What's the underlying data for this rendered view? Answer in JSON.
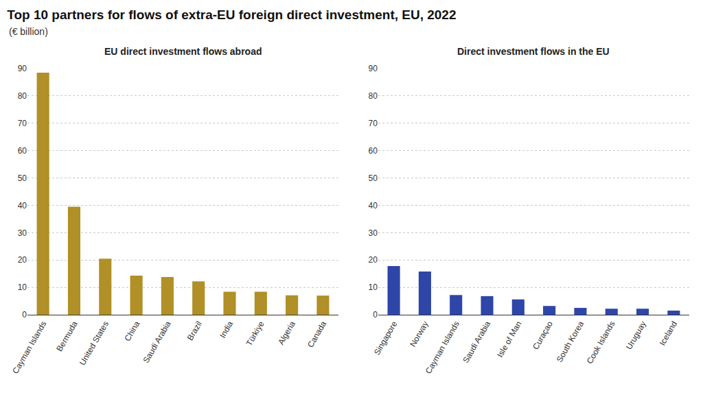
{
  "title": "Top 10 partners for flows of extra-EU foreign direct investment, EU, 2022",
  "subtitle": "(€ billion)",
  "chart_data": [
    {
      "type": "bar",
      "title": "EU direct investment flows abroad",
      "categories": [
        "Cayman Islands",
        "Bermuda",
        "United States",
        "China",
        "Saudi Arabia",
        "Brazil",
        "India",
        "Türkiye",
        "Algeria",
        "Canada"
      ],
      "values": [
        88.5,
        39.5,
        20.5,
        14.3,
        13.8,
        12.2,
        8.4,
        8.4,
        7.1,
        7.0
      ],
      "color": "#b09027",
      "ylim": [
        0,
        90
      ],
      "yticks": [
        0,
        10,
        20,
        30,
        40,
        50,
        60,
        70,
        80,
        90
      ],
      "grid": true
    },
    {
      "type": "bar",
      "title": "Direct investment flows in the EU",
      "categories": [
        "Singapore",
        "Norway",
        "Cayman Islands",
        "Saudi Arabia",
        "Isle of Man",
        "Curaçao",
        "South Korea",
        "Cook Islands",
        "Uruguay",
        "Iceland"
      ],
      "values": [
        17.8,
        15.8,
        7.2,
        6.8,
        5.6,
        3.2,
        2.5,
        2.2,
        2.2,
        1.5
      ],
      "color": "#2e46a8",
      "ylim": [
        0,
        90
      ],
      "yticks": [
        0,
        10,
        20,
        30,
        40,
        50,
        60,
        70,
        80,
        90
      ],
      "grid": true
    }
  ]
}
